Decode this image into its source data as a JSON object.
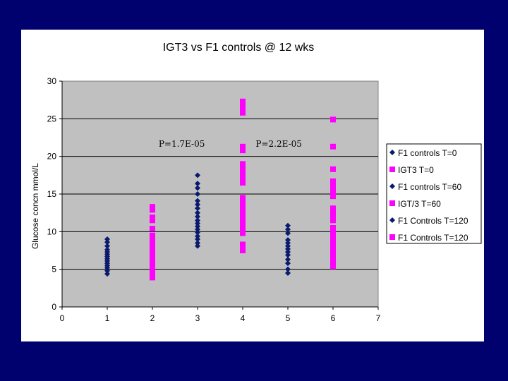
{
  "colors": {
    "slide_background": "#00006e",
    "panel_background": "#ffffff",
    "plot_background": "#c0c0c0",
    "controls_series": "#0a1a6e",
    "igt_series": "#ff00ff"
  },
  "chart_data": {
    "type": "scatter",
    "title": "IGT3 vs F1 controls @ 12 wks",
    "xlabel": "",
    "ylabel": "Glucose concn mmol/L",
    "xlim": [
      0,
      7
    ],
    "ylim": [
      0,
      30
    ],
    "x_ticks": [
      0,
      1,
      2,
      3,
      4,
      5,
      6,
      7
    ],
    "y_ticks": [
      0,
      5,
      10,
      15,
      20,
      25,
      30
    ],
    "grid": "horizontal major gridlines",
    "legend_position": "right",
    "annotations": [
      {
        "text": "P=1.7E-05",
        "x": 2.65,
        "y": 21.3
      },
      {
        "text": "P=2.2E-05",
        "x": 4.8,
        "y": 21.3
      }
    ],
    "series": [
      {
        "name": "F1 controls T=0",
        "marker": "diamond",
        "color": "#0a1a6e",
        "x": 1,
        "y": [
          4.4,
          4.8,
          5.2,
          5.5,
          5.8,
          6.1,
          6.4,
          6.7,
          7.0,
          7.3,
          7.6,
          8.1,
          8.6,
          9.0
        ]
      },
      {
        "name": "IGT3 T=0",
        "marker": "square",
        "color": "#ff00ff",
        "x": 2,
        "y": [
          3.9,
          4.3,
          4.7,
          5.1,
          5.5,
          5.9,
          6.3,
          6.7,
          7.1,
          7.5,
          7.9,
          8.3,
          8.7,
          9.1,
          9.5,
          10.4,
          11.5,
          11.9,
          12.9,
          13.3
        ]
      },
      {
        "name": "F1 controls T=60",
        "marker": "diamond",
        "color": "#0a1a6e",
        "x": 3,
        "y": [
          8.1,
          8.5,
          9.0,
          9.4,
          9.9,
          10.3,
          10.7,
          11.1,
          11.5,
          12.0,
          12.5,
          13.1,
          13.6,
          14.1,
          15.0,
          15.8,
          16.4,
          17.5
        ]
      },
      {
        "name": "IGT/3 T=60",
        "marker": "square",
        "color": "#ff00ff",
        "x": 4,
        "y": [
          7.5,
          7.9,
          8.3,
          9.8,
          10.2,
          10.6,
          11.0,
          11.4,
          11.8,
          12.2,
          12.6,
          13.0,
          13.4,
          13.8,
          14.5,
          16.5,
          17.0,
          17.5,
          18.0,
          18.5,
          19.0,
          20.8,
          21.3,
          25.8,
          26.3,
          26.8,
          27.3
        ]
      },
      {
        "name": "F1 Controls T=120",
        "marker": "diamond",
        "color": "#0a1a6e",
        "x": 5,
        "y": [
          4.5,
          5.0,
          5.8,
          6.3,
          6.9,
          7.3,
          7.7,
          8.1,
          8.5,
          8.9,
          9.8,
          10.3,
          10.8
        ]
      },
      {
        "name": "F1 Controls T=120",
        "marker": "square",
        "color": "#ff00ff",
        "x": 6,
        "y": [
          5.4,
          5.8,
          6.5,
          6.9,
          7.3,
          7.7,
          8.1,
          8.5,
          8.9,
          9.3,
          9.7,
          10.1,
          10.5,
          11.5,
          11.9,
          12.3,
          12.7,
          13.1,
          14.7,
          15.1,
          15.5,
          15.9,
          16.3,
          16.7,
          18.3,
          21.3,
          24.9
        ]
      }
    ]
  }
}
